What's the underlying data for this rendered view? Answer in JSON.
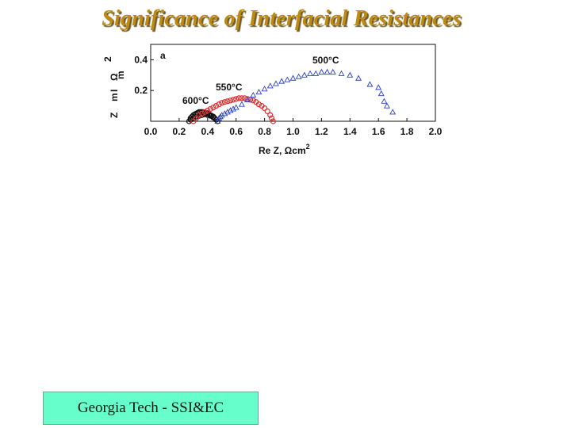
{
  "slide": {
    "title": "Significance of Interfacial Resistances",
    "footer": "Georgia Tech - SSI&EC"
  },
  "chart_data": {
    "type": "scatter",
    "panel_label": "a",
    "xlabel": "Re Z, Ωcm",
    "xlabel_sup": "2",
    "ylabel": "Im Z, Ωcm",
    "ylabel_glyphs": [
      "Z",
      "m",
      "I",
      "Ω",
      "m",
      "2"
    ],
    "xlim": [
      0.0,
      2.0
    ],
    "ylim": [
      0.0,
      0.5
    ],
    "x_ticks": [
      "0.0",
      "0.2",
      "0.4",
      "0.6",
      "0.8",
      "1.0",
      "1.2",
      "1.4",
      "1.6",
      "1.8",
      "2.0"
    ],
    "y_ticks": [
      "0.2",
      "0.4"
    ],
    "series": [
      {
        "name": "600°C",
        "color": "#111111",
        "marker": "circle",
        "x": [
          0.27,
          0.28,
          0.29,
          0.3,
          0.31,
          0.32,
          0.33,
          0.34,
          0.35,
          0.36,
          0.37,
          0.38,
          0.39,
          0.4,
          0.41,
          0.42,
          0.43,
          0.44,
          0.45,
          0.46,
          0.47,
          0.28,
          0.3,
          0.32,
          0.34,
          0.36,
          0.38,
          0.4,
          0.42,
          0.44
        ],
        "y": [
          0.0,
          0.02,
          0.03,
          0.04,
          0.045,
          0.05,
          0.055,
          0.06,
          0.06,
          0.06,
          0.06,
          0.058,
          0.055,
          0.05,
          0.045,
          0.04,
          0.035,
          0.03,
          0.02,
          0.01,
          0.0,
          0.01,
          0.02,
          0.03,
          0.035,
          0.04,
          0.045,
          0.04,
          0.035,
          0.025
        ]
      },
      {
        "name": "550°C",
        "color": "#e03030",
        "marker": "circle",
        "x": [
          0.3,
          0.32,
          0.34,
          0.36,
          0.38,
          0.4,
          0.42,
          0.44,
          0.46,
          0.48,
          0.5,
          0.52,
          0.54,
          0.56,
          0.58,
          0.6,
          0.62,
          0.64,
          0.66,
          0.68,
          0.7,
          0.72,
          0.74,
          0.76,
          0.78,
          0.8,
          0.82,
          0.84,
          0.85,
          0.86
        ],
        "y": [
          0.0,
          0.02,
          0.04,
          0.05,
          0.06,
          0.07,
          0.08,
          0.09,
          0.1,
          0.11,
          0.12,
          0.125,
          0.13,
          0.135,
          0.14,
          0.145,
          0.15,
          0.15,
          0.15,
          0.145,
          0.14,
          0.135,
          0.125,
          0.11,
          0.1,
          0.085,
          0.065,
          0.04,
          0.02,
          0.0
        ]
      },
      {
        "name": "500°C",
        "color": "#2a3fd0",
        "marker": "triangle",
        "x": [
          0.47,
          0.48,
          0.49,
          0.5,
          0.52,
          0.54,
          0.56,
          0.58,
          0.6,
          0.64,
          0.68,
          0.72,
          0.76,
          0.8,
          0.84,
          0.88,
          0.92,
          0.96,
          1.0,
          1.04,
          1.08,
          1.12,
          1.16,
          1.2,
          1.24,
          1.28,
          1.34,
          1.4,
          1.46,
          1.54,
          1.6,
          1.62,
          1.64,
          1.66,
          1.7
        ],
        "y": [
          0.0,
          0.02,
          0.03,
          0.04,
          0.05,
          0.06,
          0.07,
          0.08,
          0.09,
          0.11,
          0.14,
          0.17,
          0.19,
          0.21,
          0.23,
          0.245,
          0.26,
          0.27,
          0.28,
          0.29,
          0.3,
          0.31,
          0.31,
          0.32,
          0.32,
          0.32,
          0.31,
          0.3,
          0.28,
          0.24,
          0.22,
          0.18,
          0.13,
          0.1,
          0.06
        ]
      }
    ]
  }
}
